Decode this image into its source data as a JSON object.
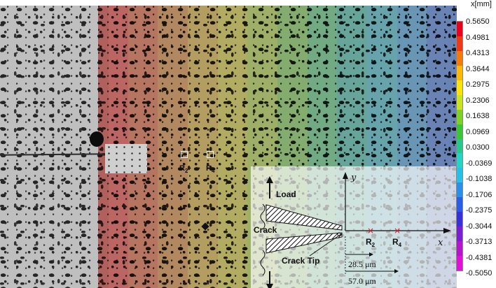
{
  "colorbar": {
    "title": "x[mm]",
    "ticks": [
      "0.5650",
      "0.4981",
      "0.4313",
      "0.3644",
      "0.2975",
      "0.2306",
      "0.1638",
      "0.0969",
      "0.0300",
      "-0.0369",
      "-0.1038",
      "-0.1706",
      "-0.2375",
      "-0.3044",
      "-0.3713",
      "-0.4381",
      "-0.5050"
    ],
    "colors": [
      "#e8001c",
      "#ee3a14",
      "#f57a0c",
      "#f9b80a",
      "#fbe30c",
      "#c9e221",
      "#7fd12a",
      "#3bc63a",
      "#27c88a",
      "#27d3c4",
      "#27c0e6",
      "#2a8fe8",
      "#2a5ce6",
      "#3b2fd8",
      "#7a1fd0",
      "#b514cc",
      "#e20fd6"
    ]
  },
  "bands": {
    "colors": [
      "#e2332b",
      "#d8542a",
      "#cf7a28",
      "#d4a52a",
      "#d1c52c",
      "#a8cc36",
      "#72c547",
      "#4cc070",
      "#36b6a0",
      "#35b2c2",
      "#3a96d5",
      "#3a6fd4"
    ]
  },
  "refs": [
    {
      "letter": "R",
      "sub": "2"
    },
    {
      "letter": "R",
      "sub": "4"
    }
  ],
  "schematic": {
    "load": "Load",
    "crack": "Crack",
    "crack_tip": "Crack Tip",
    "axis_y": "y",
    "axis_x": "x",
    "origin": "o",
    "r2": {
      "letter": "R",
      "sub": "2"
    },
    "r4": {
      "letter": "R",
      "sub": "4"
    },
    "dim1": "28.5 μm",
    "dim2": "57.0 μm"
  }
}
